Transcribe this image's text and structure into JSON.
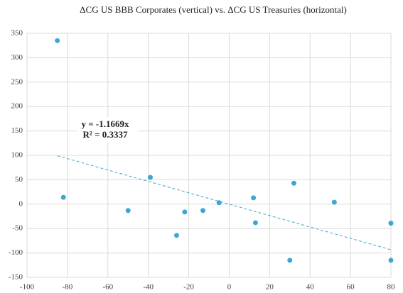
{
  "chart_data": {
    "type": "scatter",
    "title": "ΔCG US BBB Corporates (vertical) vs. ΔCG US Treasuries (horizontal)",
    "series": [
      {
        "color": "#3ea6d2",
        "x": [
          -85,
          -82,
          -50,
          -39,
          -26,
          -22,
          -13,
          -5,
          12,
          13,
          32,
          30,
          52,
          80,
          80
        ],
        "values": [
          335,
          14,
          -13,
          55,
          -64,
          -16,
          -13,
          3,
          13,
          -38,
          43,
          -115,
          4,
          -39,
          -115
        ]
      }
    ],
    "trendline": {
      "slope": -1.1669,
      "x": [
        -85,
        80
      ],
      "color": "#3ea6d2"
    },
    "annotations": [
      "y = -1.1669x",
      "R² = 0.3337"
    ],
    "xlim": [
      -100,
      80
    ],
    "xticks": [
      -100,
      -80,
      -60,
      -40,
      -20,
      0,
      20,
      40,
      60,
      80
    ],
    "ylim": [
      -150,
      350
    ],
    "yticks": [
      -150,
      -100,
      -50,
      0,
      50,
      100,
      150,
      200,
      250,
      300,
      350
    ],
    "grid": true
  }
}
